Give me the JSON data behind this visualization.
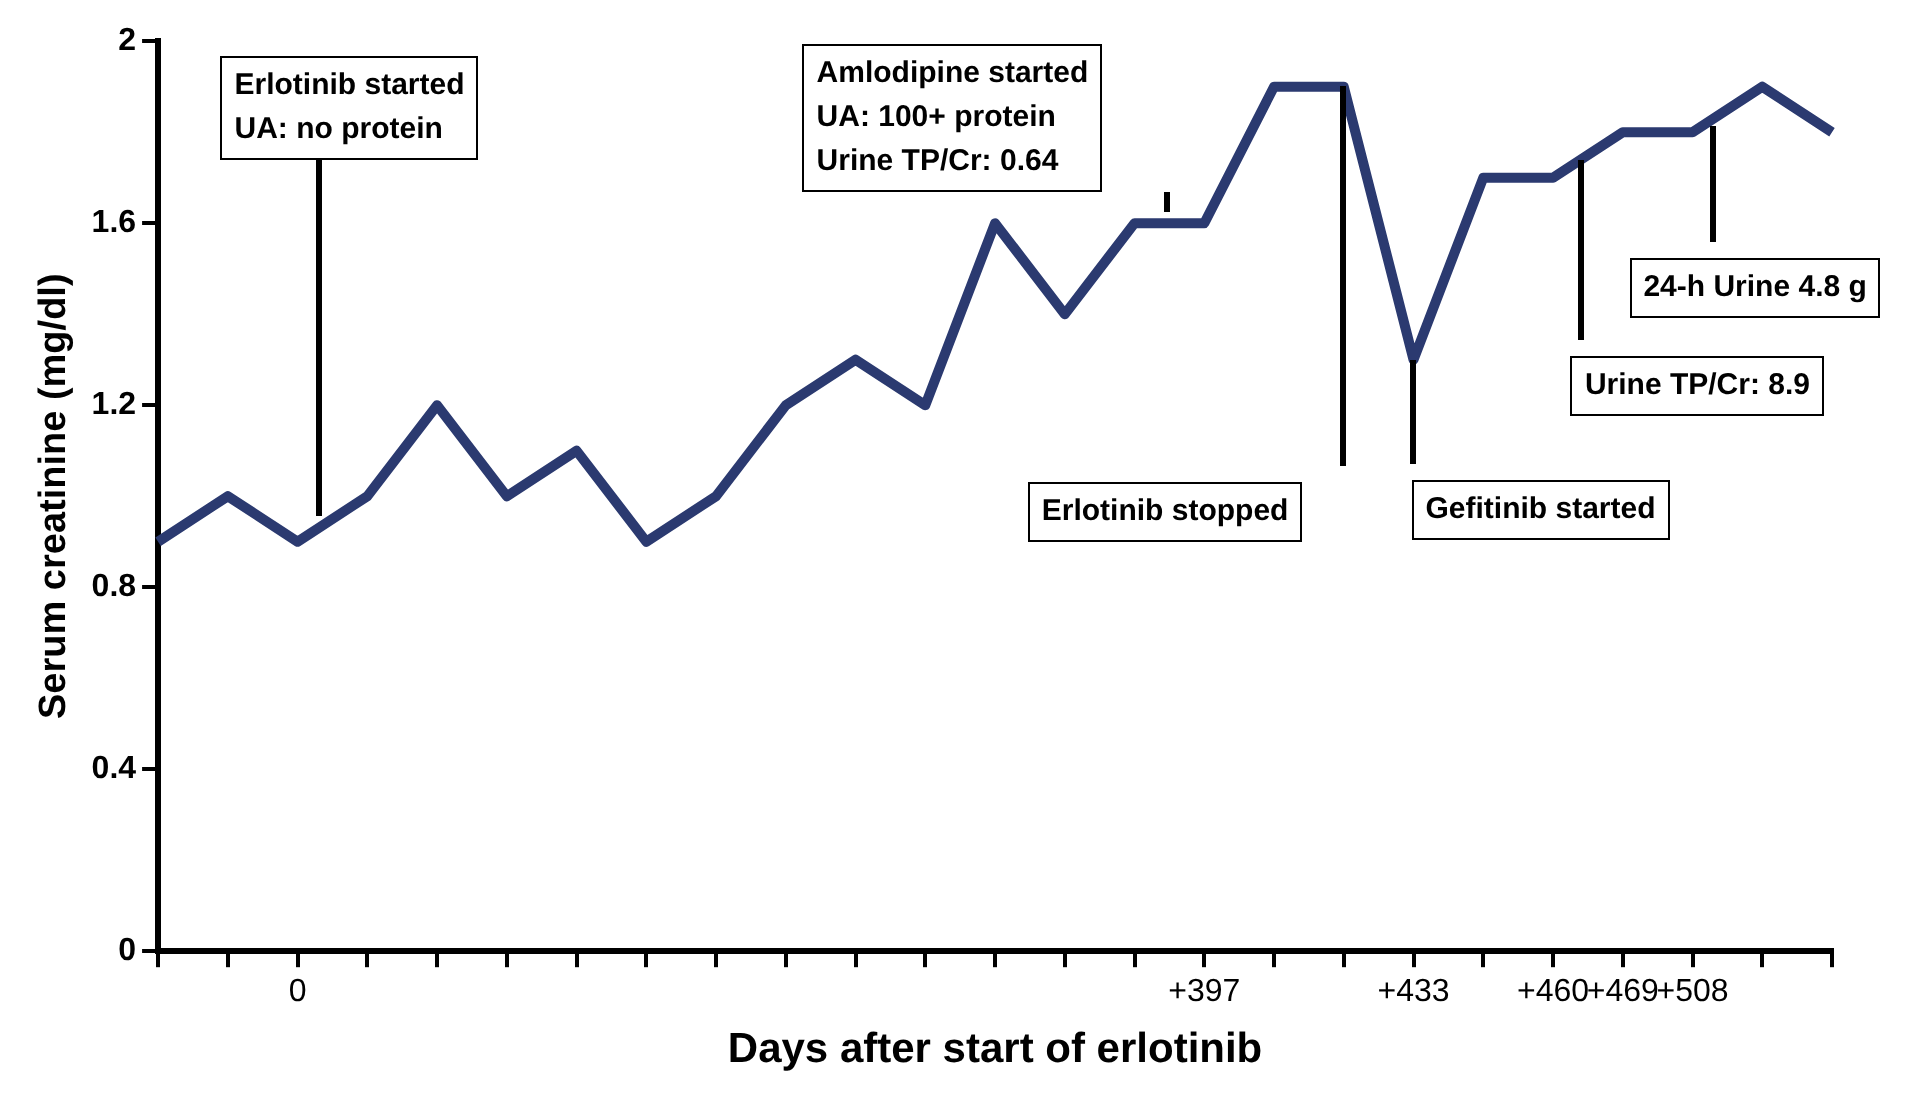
{
  "chart_data": {
    "type": "line",
    "xlabel": "Days after start of erlotinib",
    "ylabel": "Serum creatinine (mg/dl)",
    "categories": [
      null,
      null,
      "0",
      null,
      null,
      null,
      null,
      null,
      null,
      null,
      null,
      null,
      null,
      null,
      null,
      "+397",
      null,
      null,
      "+433",
      null,
      "+460",
      "+469",
      "+508",
      null,
      null
    ],
    "series": [
      {
        "color": "#2b3a70",
        "values": [
          0.9,
          1.0,
          0.9,
          1.0,
          1.2,
          1.0,
          1.1,
          0.9,
          1.0,
          1.2,
          1.3,
          1.2,
          1.6,
          1.4,
          1.6,
          1.6,
          1.9,
          1.9,
          1.3,
          1.7,
          1.7,
          1.8,
          1.8,
          1.9,
          1.8
        ]
      }
    ],
    "ylim": [
      0,
      2
    ],
    "yticks": [
      0,
      0.4,
      0.8,
      1.2,
      1.6,
      2
    ],
    "grid": false,
    "legend": false,
    "marker": "none",
    "line_style": "solid",
    "annotations": [
      "Erlotinib started\nUA: no protein",
      "Amlodipine started\nUA: 100+ protein\nUrine TP/Cr: 0.64",
      "Erlotinib stopped",
      "Gefitinib started",
      "Urine TP/Cr: 8.9",
      "24-h Urine 4.8 g"
    ]
  }
}
